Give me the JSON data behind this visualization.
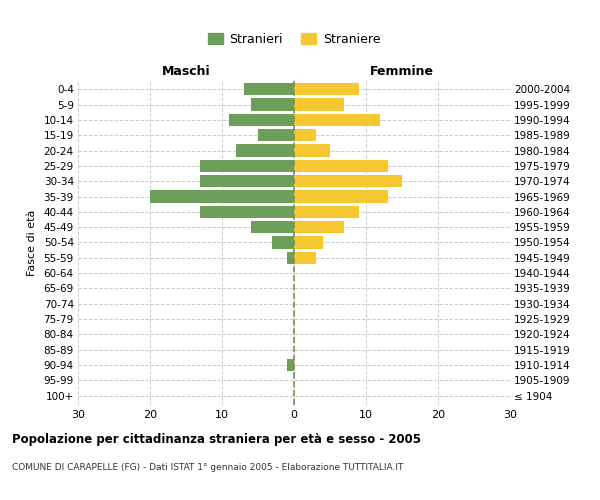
{
  "age_groups": [
    "100+",
    "95-99",
    "90-94",
    "85-89",
    "80-84",
    "75-79",
    "70-74",
    "65-69",
    "60-64",
    "55-59",
    "50-54",
    "45-49",
    "40-44",
    "35-39",
    "30-34",
    "25-29",
    "20-24",
    "15-19",
    "10-14",
    "5-9",
    "0-4"
  ],
  "birth_years": [
    "≤ 1904",
    "1905-1909",
    "1910-1914",
    "1915-1919",
    "1920-1924",
    "1925-1929",
    "1930-1934",
    "1935-1939",
    "1940-1944",
    "1945-1949",
    "1950-1954",
    "1955-1959",
    "1960-1964",
    "1965-1969",
    "1970-1974",
    "1975-1979",
    "1980-1984",
    "1985-1989",
    "1990-1994",
    "1995-1999",
    "2000-2004"
  ],
  "males": [
    0,
    0,
    1,
    0,
    0,
    0,
    0,
    0,
    0,
    1,
    3,
    6,
    13,
    20,
    13,
    13,
    8,
    5,
    9,
    6,
    7
  ],
  "females": [
    0,
    0,
    0,
    0,
    0,
    0,
    0,
    0,
    0,
    3,
    4,
    7,
    9,
    13,
    15,
    13,
    5,
    3,
    12,
    7,
    9
  ],
  "male_color": "#6d9e5a",
  "female_color": "#f5c732",
  "background_color": "#ffffff",
  "grid_color": "#cccccc",
  "title": "Popolazione per cittadinanza straniera per età e sesso - 2005",
  "subtitle": "COMUNE DI CARAPELLE (FG) - Dati ISTAT 1° gennaio 2005 - Elaborazione TUTTITALIA.IT",
  "xlabel_left": "Maschi",
  "xlabel_right": "Femmine",
  "ylabel_left": "Fasce di età",
  "legend_male": "Stranieri",
  "legend_female": "Straniere",
  "xlim": 30,
  "bar_height": 0.8
}
